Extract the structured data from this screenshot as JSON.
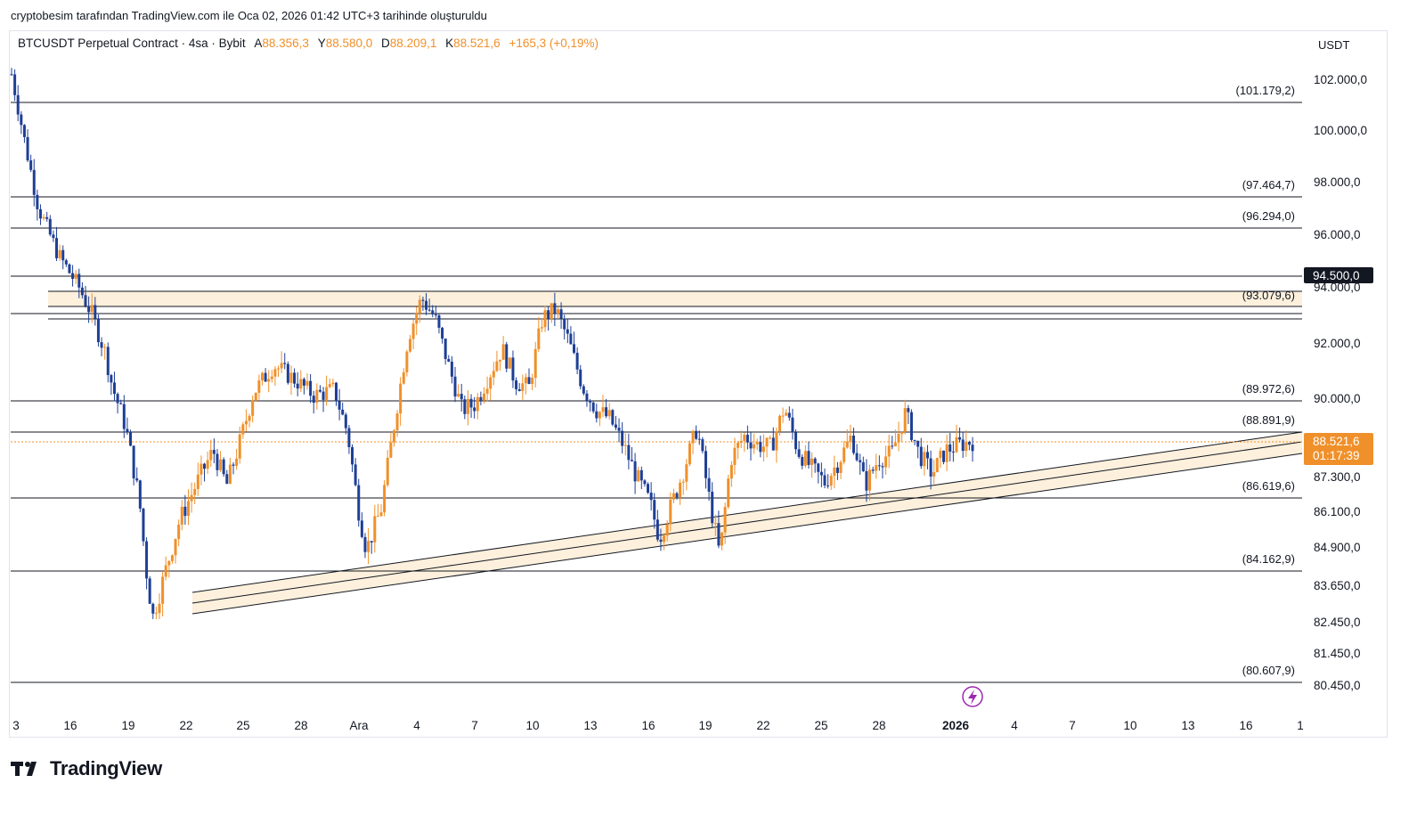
{
  "header": {
    "attribution": "cryptobesim tarafından TradingView.com ile Oca 02, 2026 01:42 UTC+3 tarihinde oluşturuldu"
  },
  "symbol": {
    "name": "BTCUSDT Perpetual Contract · 4sa · Bybit",
    "open_label": "A",
    "open": "88.356,3",
    "high_label": "Y",
    "high": "88.580,0",
    "low_label": "D",
    "low": "88.209,1",
    "close_label": "K",
    "close": "88.521,6",
    "change": "+165,3 (+0,19%)"
  },
  "price_axis": {
    "currency": "USDT",
    "ticks": [
      "102.000,0",
      "100.000,0",
      "98.000,0",
      "96.000,0",
      "94.000,0",
      "92.000,0",
      "90.000,0",
      "87.300,0",
      "86.100,0",
      "84.900,0",
      "83.650,0",
      "82.450,0",
      "81.450,0",
      "80.450,0"
    ],
    "current_price_label": "88.521,6",
    "countdown": "01:17:39",
    "highlight_level_label": "94.500,0"
  },
  "time_axis": {
    "ticks": [
      "3",
      "16",
      "19",
      "22",
      "25",
      "28",
      "Ara",
      "4",
      "7",
      "10",
      "13",
      "16",
      "19",
      "22",
      "25",
      "28",
      "2026",
      "4",
      "7",
      "10",
      "13",
      "16",
      "1"
    ]
  },
  "levels": [
    {
      "label": "(101.179,2)",
      "value": 101179.2
    },
    {
      "label": "(97.464,7)",
      "value": 97464.7
    },
    {
      "label": "(96.294,0)",
      "value": 96294.0
    },
    {
      "label": "(93.079,6)",
      "value": 93079.6
    },
    {
      "label": "(89.972,6)",
      "value": 89972.6
    },
    {
      "label": "(88.891,9)",
      "value": 88891.9
    },
    {
      "label": "(86.619,6)",
      "value": 86619.6
    },
    {
      "label": "(84.162,9)",
      "value": 84162.9
    },
    {
      "label": "(80.607,9)",
      "value": 80607.9
    }
  ],
  "colors": {
    "bull": "#f0902a",
    "bear": "#1e3f96",
    "zone_fill": "#fdf0dc",
    "current_price": "#f0902a",
    "level_line": "#131722",
    "event_marker": "#9c27b0"
  },
  "footer": {
    "logo_text": "TradingView"
  },
  "chart_data": {
    "type": "candlestick",
    "title": "BTCUSDT Perpetual Contract · 4sa · Bybit",
    "x_ticks": [
      "3",
      "16",
      "19",
      "22",
      "25",
      "28",
      "Ara",
      "4",
      "7",
      "10",
      "13",
      "16",
      "19",
      "22",
      "25",
      "28",
      "2026",
      "4",
      "7",
      "10",
      "13",
      "16",
      "1"
    ],
    "y_ticks": [
      "102.000,0",
      "100.000,0",
      "98.000,0",
      "96.000,0",
      "94.000,0",
      "92.000,0",
      "90.000,0",
      "87.300,0",
      "86.100,0",
      "84.900,0",
      "83.650,0",
      "82.450,0",
      "81.450,0",
      "80.450,0"
    ],
    "close_path": [
      [
        0,
        102200
      ],
      [
        10,
        99500
      ],
      [
        20,
        97000
      ],
      [
        35,
        95200
      ],
      [
        50,
        94000
      ],
      [
        60,
        93000
      ],
      [
        70,
        91600
      ],
      [
        75,
        90400
      ],
      [
        85,
        89000
      ],
      [
        95,
        86500
      ],
      [
        100,
        84200
      ],
      [
        105,
        82600
      ],
      [
        112,
        83700
      ],
      [
        125,
        85800
      ],
      [
        140,
        87300
      ],
      [
        150,
        88200
      ],
      [
        160,
        87000
      ],
      [
        170,
        88500
      ],
      [
        180,
        90200
      ],
      [
        195,
        91200
      ],
      [
        210,
        90700
      ],
      [
        225,
        90100
      ],
      [
        240,
        90300
      ],
      [
        250,
        88800
      ],
      [
        258,
        86200
      ],
      [
        264,
        84800
      ],
      [
        275,
        86200
      ],
      [
        285,
        89200
      ],
      [
        295,
        92200
      ],
      [
        305,
        93600
      ],
      [
        315,
        92900
      ],
      [
        325,
        91200
      ],
      [
        335,
        89600
      ],
      [
        345,
        89800
      ],
      [
        355,
        90800
      ],
      [
        365,
        91800
      ],
      [
        375,
        90600
      ],
      [
        385,
        90400
      ],
      [
        395,
        92900
      ],
      [
        405,
        93200
      ],
      [
        415,
        92000
      ],
      [
        425,
        90400
      ],
      [
        435,
        89600
      ],
      [
        445,
        89300
      ],
      [
        455,
        88400
      ],
      [
        465,
        87300
      ],
      [
        475,
        86400
      ],
      [
        482,
        85200
      ],
      [
        490,
        86200
      ],
      [
        500,
        87500
      ],
      [
        510,
        89000
      ],
      [
        520,
        86300
      ],
      [
        527,
        84600
      ],
      [
        535,
        87900
      ],
      [
        545,
        88700
      ],
      [
        555,
        88400
      ],
      [
        565,
        88300
      ],
      [
        575,
        89700
      ],
      [
        585,
        88200
      ],
      [
        595,
        87600
      ],
      [
        605,
        87100
      ],
      [
        615,
        87800
      ],
      [
        625,
        88700
      ],
      [
        635,
        87000
      ],
      [
        645,
        87900
      ],
      [
        655,
        88100
      ],
      [
        665,
        89500
      ],
      [
        675,
        88100
      ],
      [
        685,
        87400
      ],
      [
        695,
        88200
      ],
      [
        705,
        88400
      ],
      [
        715,
        88521.6
      ]
    ]
  }
}
